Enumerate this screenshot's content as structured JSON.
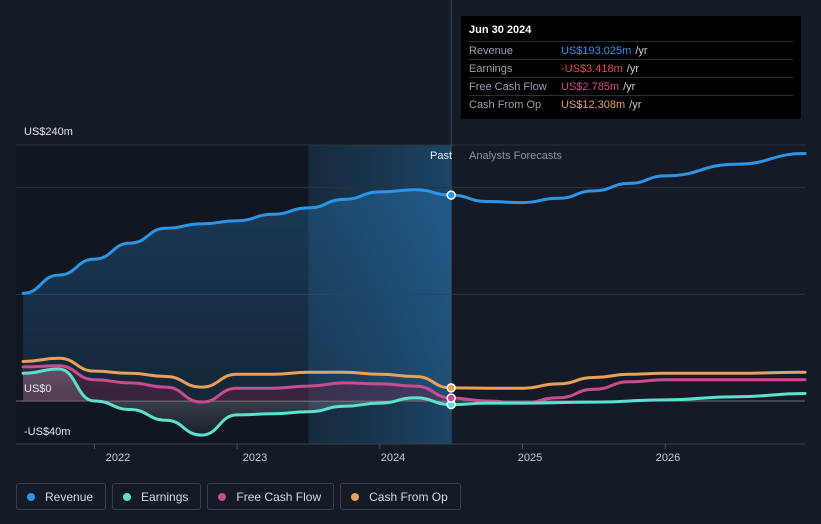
{
  "chart_data": {
    "type": "line",
    "y_unit": "US$m",
    "ylim": [
      -40,
      240
    ],
    "y_ticks": [
      {
        "value": 240,
        "label": "US$240m"
      },
      {
        "value": 0,
        "label": "US$0"
      },
      {
        "value": -40,
        "label": "-US$40m"
      }
    ],
    "x_range": [
      2021.45,
      2026.98
    ],
    "x_ticks": [
      {
        "value": 2022,
        "label": "2022"
      },
      {
        "value": 2023,
        "label": "2023"
      },
      {
        "value": 2024,
        "label": "2024"
      },
      {
        "value": 2025,
        "label": "2025"
      },
      {
        "value": 2026,
        "label": "2026"
      }
    ],
    "past_label": "Past",
    "forecast_label": "Analysts Forecasts",
    "past_shade_start": 2023.5,
    "divider_x": 2024.5,
    "series": [
      {
        "name": "Revenue",
        "color": "#2e95e6",
        "points": [
          [
            2021.5,
            101
          ],
          [
            2021.75,
            118
          ],
          [
            2022.0,
            133
          ],
          [
            2022.25,
            148
          ],
          [
            2022.5,
            162
          ],
          [
            2022.75,
            166
          ],
          [
            2023.0,
            169
          ],
          [
            2023.25,
            175
          ],
          [
            2023.5,
            181
          ],
          [
            2023.75,
            189
          ],
          [
            2024.0,
            196
          ],
          [
            2024.25,
            198
          ],
          [
            2024.5,
            193
          ],
          [
            2024.75,
            187
          ],
          [
            2025.0,
            186
          ],
          [
            2025.25,
            190
          ],
          [
            2025.5,
            197
          ],
          [
            2025.75,
            204
          ],
          [
            2026.0,
            211
          ],
          [
            2026.5,
            222
          ],
          [
            2026.98,
            232
          ]
        ]
      },
      {
        "name": "Earnings",
        "color": "#5fe0cc",
        "points": [
          [
            2021.5,
            26
          ],
          [
            2021.75,
            30
          ],
          [
            2022.0,
            0
          ],
          [
            2022.25,
            -8
          ],
          [
            2022.5,
            -18
          ],
          [
            2022.75,
            -32
          ],
          [
            2023.0,
            -13
          ],
          [
            2023.25,
            -12
          ],
          [
            2023.5,
            -10
          ],
          [
            2023.75,
            -5
          ],
          [
            2024.0,
            -2
          ],
          [
            2024.25,
            3
          ],
          [
            2024.5,
            -3.418
          ],
          [
            2024.75,
            -2
          ],
          [
            2025.0,
            -2
          ],
          [
            2025.5,
            -1
          ],
          [
            2026.0,
            1
          ],
          [
            2026.5,
            4
          ],
          [
            2026.98,
            7
          ]
        ]
      },
      {
        "name": "Free Cash Flow",
        "color": "#c84d8f",
        "points": [
          [
            2021.5,
            32
          ],
          [
            2021.75,
            33
          ],
          [
            2022.0,
            20
          ],
          [
            2022.25,
            17
          ],
          [
            2022.5,
            13
          ],
          [
            2022.75,
            -1
          ],
          [
            2023.0,
            12
          ],
          [
            2023.25,
            12
          ],
          [
            2023.5,
            14
          ],
          [
            2023.75,
            17
          ],
          [
            2024.0,
            16
          ],
          [
            2024.25,
            14
          ],
          [
            2024.5,
            2.785
          ],
          [
            2024.75,
            0
          ],
          [
            2025.0,
            -2
          ],
          [
            2025.25,
            3
          ],
          [
            2025.5,
            11
          ],
          [
            2025.75,
            18
          ],
          [
            2026.0,
            20
          ],
          [
            2026.5,
            20
          ],
          [
            2026.98,
            20
          ]
        ]
      },
      {
        "name": "Cash From Op",
        "color": "#e8a05a",
        "points": [
          [
            2021.5,
            37
          ],
          [
            2021.75,
            40
          ],
          [
            2022.0,
            28
          ],
          [
            2022.25,
            26
          ],
          [
            2022.5,
            23
          ],
          [
            2022.75,
            13
          ],
          [
            2023.0,
            25
          ],
          [
            2023.25,
            25
          ],
          [
            2023.5,
            27
          ],
          [
            2023.75,
            27
          ],
          [
            2024.0,
            25
          ],
          [
            2024.25,
            23
          ],
          [
            2024.5,
            12.308
          ],
          [
            2024.75,
            12
          ],
          [
            2025.0,
            12
          ],
          [
            2025.25,
            16
          ],
          [
            2025.5,
            22
          ],
          [
            2025.75,
            25
          ],
          [
            2026.0,
            26
          ],
          [
            2026.5,
            26
          ],
          [
            2026.98,
            27
          ]
        ]
      }
    ]
  },
  "tooltip": {
    "date": "Jun 30 2024",
    "rows": [
      {
        "label": "Revenue",
        "value": "US$193.025m",
        "unit": "/yr",
        "color": "#2e95e6"
      },
      {
        "label": "Earnings",
        "value": "-US$3.418m",
        "unit": "/yr",
        "color": "#e5484d"
      },
      {
        "label": "Free Cash Flow",
        "value": "US$2.785m",
        "unit": "/yr",
        "color": "#c84d8f"
      },
      {
        "label": "Cash From Op",
        "value": "US$12.308m",
        "unit": "/yr",
        "color": "#e8a05a"
      }
    ]
  },
  "legend": [
    {
      "label": "Revenue",
      "color": "#2e95e6"
    },
    {
      "label": "Earnings",
      "color": "#5fe0cc"
    },
    {
      "label": "Free Cash Flow",
      "color": "#c84d8f"
    },
    {
      "label": "Cash From Op",
      "color": "#e8a05a"
    }
  ]
}
